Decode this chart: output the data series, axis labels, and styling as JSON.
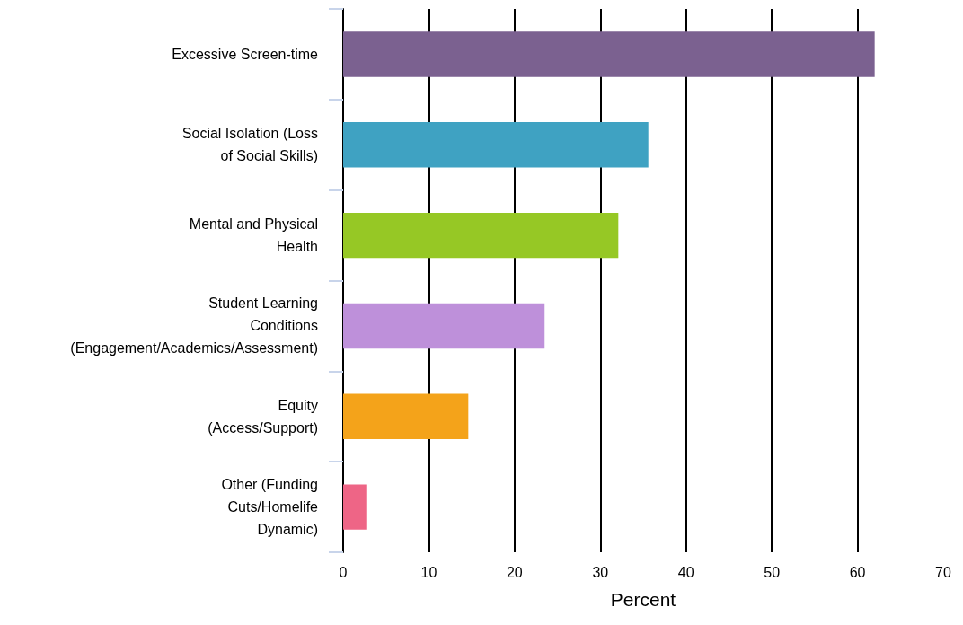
{
  "chart_data": {
    "type": "bar",
    "orientation": "horizontal",
    "xlabel": "Percent",
    "categories": [
      "Excessive Screen-time",
      "Social Isolation (Loss\nof Social Skills)",
      "Mental and Physical\nHealth",
      "Student Learning\nConditions\n(Engagement/Academics/Assessment)",
      "Equity\n(Access/Support)",
      "Other (Funding\nCuts/Homelife\nDynamic)"
    ],
    "values": [
      62.0,
      35.6,
      32.1,
      23.5,
      14.6,
      2.7
    ],
    "colors": [
      "#7b6190",
      "#3fa2c2",
      "#96c825",
      "#be90da",
      "#f4a31a",
      "#ee6586"
    ],
    "xlim": [
      0,
      70
    ],
    "xticks": [
      0,
      10,
      20,
      30,
      40,
      50,
      60,
      70
    ],
    "grid": "x"
  }
}
